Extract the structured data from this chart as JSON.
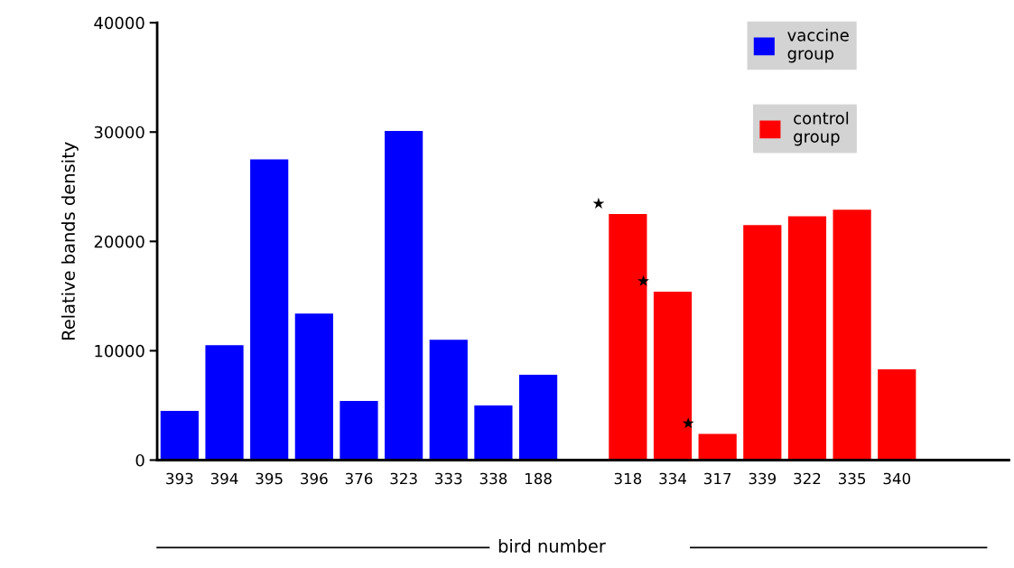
{
  "chart_data": {
    "type": "bar",
    "ylabel": "Relative bands density",
    "xlabel": "bird number",
    "categories": [
      "393",
      "394",
      "395",
      "396",
      "376",
      "323",
      "333",
      "338",
      "188",
      null,
      "318",
      "334",
      "317",
      "339",
      "322",
      "335",
      "340",
      null,
      null
    ],
    "series": [
      {
        "name": "vaccine group",
        "color": "#0000ff",
        "values": [
          4500,
          10500,
          27500,
          13400,
          5400,
          30100,
          11000,
          5000,
          7800,
          null,
          null,
          null,
          null,
          null,
          null,
          null,
          null,
          null,
          null
        ]
      },
      {
        "name": "control group",
        "color": "#ff0000",
        "values": [
          null,
          null,
          null,
          null,
          null,
          null,
          null,
          null,
          null,
          null,
          22500,
          15400,
          2400,
          21500,
          22300,
          22900,
          8300,
          null,
          null
        ]
      }
    ],
    "annotations": [
      {
        "text": "★",
        "x": "318",
        "y": 22500
      },
      {
        "text": "★",
        "x": "334",
        "y": 15400
      },
      {
        "text": "★",
        "x": "317",
        "y": 2400
      }
    ],
    "ylim": [
      0,
      40000
    ],
    "yticks": [
      0,
      10000,
      20000,
      30000,
      40000
    ],
    "grid": false,
    "legend": "top right"
  }
}
